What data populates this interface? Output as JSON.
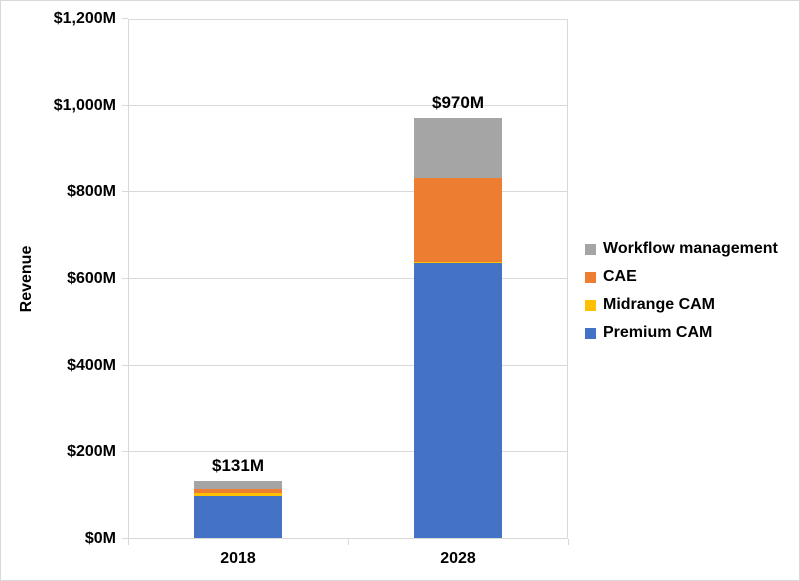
{
  "chart_data": {
    "type": "bar",
    "stacked": true,
    "title": "",
    "ylabel": "Revenue",
    "xlabel": "",
    "ylim": [
      0,
      1200
    ],
    "ytick_step": 200,
    "ytick_labels": [
      "$0M",
      "$200M",
      "$400M",
      "$600M",
      "$800M",
      "$1,000M",
      "$1,200M"
    ],
    "grid": true,
    "legend_position": "right",
    "categories": [
      "2018",
      "2028"
    ],
    "series": [
      {
        "name": "Premium CAM",
        "color": "#4472C4",
        "values": [
          98,
          635
        ]
      },
      {
        "name": "Midrange CAM",
        "color": "#FFC000",
        "values": [
          5,
          3
        ]
      },
      {
        "name": "CAE",
        "color": "#ED7D31",
        "values": [
          10,
          192
        ]
      },
      {
        "name": "Workflow management",
        "color": "#A5A5A5",
        "values": [
          18,
          140
        ]
      }
    ],
    "totals": [
      131,
      970
    ],
    "data_labels": [
      "$131M",
      "$970M"
    ],
    "legend_order": [
      "Workflow management",
      "CAE",
      "Midrange CAM",
      "Premium CAM"
    ],
    "colors": {
      "gridline": "#D9D9D9",
      "axis": "#D9D9D9",
      "text": "#000000",
      "background": "#FFFFFF"
    }
  }
}
